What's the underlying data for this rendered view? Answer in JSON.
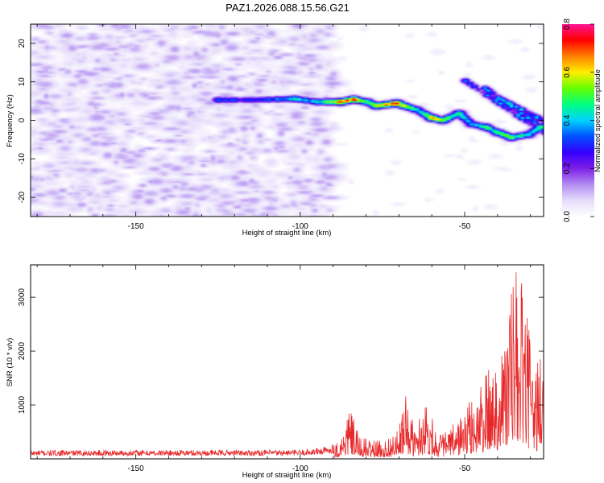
{
  "figure": {
    "title": "PAZ1.2026.088.15.56.G21",
    "colors": {
      "line": "#e8292b",
      "frame": "#000000"
    }
  },
  "chart_data": [
    {
      "type": "heatmap",
      "name": "spectrogram",
      "xlabel": "Height of straight line (km)",
      "ylabel": "Frequency (Hz)",
      "xlim": [
        -182,
        -26
      ],
      "ylim": [
        -25,
        25
      ],
      "xticks": [
        -150,
        -100,
        -50
      ],
      "yticks": [
        -20,
        -10,
        0,
        10,
        20
      ],
      "colorbar": {
        "label": "Normalized spectral amplitude",
        "range": [
          0.0,
          0.8
        ],
        "ticks": [
          0.0,
          0.2,
          0.4,
          0.6,
          0.8
        ],
        "colormap": [
          "#ffffff",
          "#e6ddfb",
          "#b28cf2",
          "#7f1fe6",
          "#3300ff",
          "#0050ff",
          "#00d2ff",
          "#00ff80",
          "#66ff00",
          "#ffee00",
          "#ff8000",
          "#ff0000",
          "#ff1493"
        ]
      },
      "ridge": [
        {
          "x": -125,
          "f": 5.5,
          "a": 0.35
        },
        {
          "x": -115,
          "f": 5.5,
          "a": 0.3
        },
        {
          "x": -102,
          "f": 5.8,
          "a": 0.45
        },
        {
          "x": -95,
          "f": 5.0,
          "a": 0.45
        },
        {
          "x": -88,
          "f": 5.0,
          "a": 0.7
        },
        {
          "x": -84,
          "f": 5.6,
          "a": 0.75
        },
        {
          "x": -80,
          "f": 5.0,
          "a": 0.5
        },
        {
          "x": -77,
          "f": 4.0,
          "a": 0.6
        },
        {
          "x": -71,
          "f": 4.6,
          "a": 0.75
        },
        {
          "x": -65,
          "f": 3.0,
          "a": 0.45
        },
        {
          "x": -60,
          "f": 0.8,
          "a": 0.65
        },
        {
          "x": -57,
          "f": 0.2,
          "a": 0.55
        },
        {
          "x": -52,
          "f": 2.0,
          "a": 0.5
        },
        {
          "x": -48,
          "f": -0.8,
          "a": 0.4
        },
        {
          "x": -44,
          "f": -1.5,
          "a": 0.5
        },
        {
          "x": -40,
          "f": -3.0,
          "a": 0.5
        },
        {
          "x": -36,
          "f": -4.2,
          "a": 0.55
        },
        {
          "x": -31,
          "f": -3.5,
          "a": 0.45
        },
        {
          "x": -27,
          "f": -1.5,
          "a": 0.5
        }
      ],
      "branches": [
        {
          "x0": -50,
          "f0": 10.5,
          "x1": -26,
          "f1": -3.0,
          "a": 0.4
        },
        {
          "x0": -44,
          "f0": 8.5,
          "x1": -26,
          "f1": -2.0,
          "a": 0.4
        },
        {
          "x0": -40,
          "f0": 6.0,
          "x1": -26,
          "f1": 0.0,
          "a": 0.45
        }
      ],
      "noise_region": {
        "x_from": -182,
        "x_to": -90,
        "amplitude_max": 0.12
      }
    },
    {
      "type": "line",
      "name": "snr",
      "xlabel": "Height of straight line (km)",
      "ylabel": "SNR (10 * v/v)",
      "xlim": [
        -182,
        -26
      ],
      "ylim": [
        0,
        3600
      ],
      "xticks": [
        -150,
        -100,
        -50
      ],
      "yticks": [
        1000,
        2000,
        3000
      ],
      "series": [
        {
          "name": "SNR",
          "envelope": [
            {
              "x": -182,
              "snr": 160
            },
            {
              "x": -100,
              "snr": 170
            },
            {
              "x": -92,
              "snr": 230
            },
            {
              "x": -88,
              "snr": 350
            },
            {
              "x": -85,
              "snr": 980
            },
            {
              "x": -82,
              "snr": 420
            },
            {
              "x": -75,
              "snr": 320
            },
            {
              "x": -70,
              "snr": 550
            },
            {
              "x": -68,
              "snr": 1230
            },
            {
              "x": -65,
              "snr": 550
            },
            {
              "x": -62,
              "snr": 1200
            },
            {
              "x": -58,
              "snr": 450
            },
            {
              "x": -54,
              "snr": 600
            },
            {
              "x": -50,
              "snr": 950
            },
            {
              "x": -46,
              "snr": 1300
            },
            {
              "x": -41,
              "snr": 1900
            },
            {
              "x": -38,
              "snr": 2400
            },
            {
              "x": -35,
              "snr": 3600
            },
            {
              "x": -32,
              "snr": 3250
            },
            {
              "x": -29,
              "snr": 1600
            },
            {
              "x": -27,
              "snr": 2200
            },
            {
              "x": -26,
              "snr": 1500
            }
          ]
        }
      ]
    }
  ]
}
